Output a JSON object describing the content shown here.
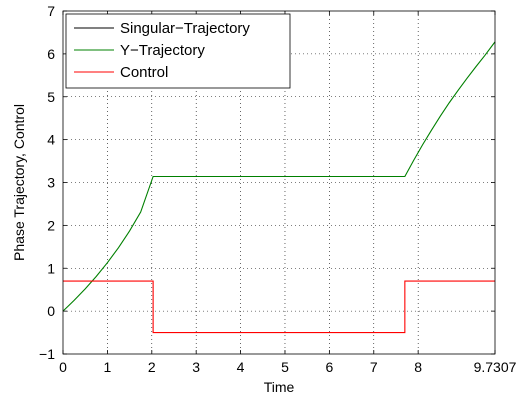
{
  "chart_data": {
    "type": "line",
    "title": "",
    "xlabel": "Time",
    "ylabel": "Phase Trajectory, Control",
    "xlim": [
      0,
      9.7307
    ],
    "ylim": [
      -1,
      7
    ],
    "x_ticks": [
      0,
      1,
      2,
      3,
      4,
      5,
      6,
      7,
      8,
      9.7307
    ],
    "x_tick_labels": [
      "0",
      "1",
      "2",
      "3",
      "4",
      "5",
      "6",
      "7",
      "8",
      "9.7307"
    ],
    "y_ticks": [
      -1,
      0,
      1,
      2,
      3,
      4,
      5,
      6,
      7
    ],
    "y_tick_labels": [
      "−1",
      "0",
      "1",
      "2",
      "3",
      "4",
      "5",
      "6",
      "7"
    ],
    "grid": true,
    "grid_style": "dotted",
    "legend_position": "top-left",
    "series": [
      {
        "name": "Singular−Trajectory",
        "color": "#000000",
        "x": [
          2.03,
          7.7
        ],
        "y": [
          3.14,
          3.14
        ]
      },
      {
        "name": "Y−Trajectory",
        "color": "#008000",
        "x": [
          0,
          0.25,
          0.5,
          0.75,
          1.0,
          1.25,
          1.5,
          1.75,
          2.03,
          3,
          4,
          5,
          6,
          7,
          7.7,
          7.9,
          8.1,
          8.3,
          8.5,
          8.7,
          8.9,
          9.1,
          9.3,
          9.5,
          9.7307
        ],
        "y": [
          0.0,
          0.25,
          0.52,
          0.81,
          1.13,
          1.48,
          1.87,
          2.31,
          3.14,
          3.14,
          3.14,
          3.14,
          3.14,
          3.14,
          3.14,
          3.52,
          3.88,
          4.22,
          4.55,
          4.86,
          5.15,
          5.43,
          5.7,
          5.96,
          6.28
        ]
      },
      {
        "name": "Control",
        "color": "#ff0000",
        "x": [
          0,
          2.03,
          2.03,
          7.7,
          7.7,
          9.7307
        ],
        "y": [
          0.7,
          0.7,
          -0.5,
          -0.5,
          0.7,
          0.7
        ]
      }
    ]
  }
}
